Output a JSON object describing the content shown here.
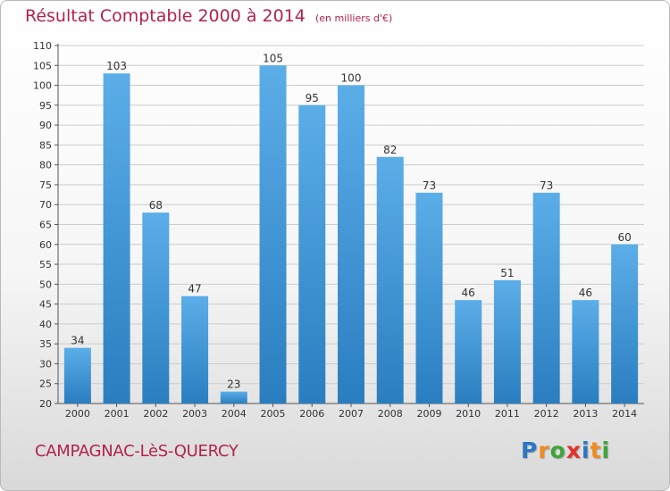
{
  "title": "Résultat Comptable 2000 à 2014",
  "subtitle": "(en milliers d'€)",
  "commune": "CAMPAGNAC-LèS-QUERCY",
  "logo": {
    "letters": [
      {
        "ch": "P",
        "color": "#2a77c4"
      },
      {
        "ch": "r",
        "color": "#f08c1e"
      },
      {
        "ch": "o",
        "color": "#3ea53b"
      },
      {
        "ch": "x",
        "color": "#e2322a"
      },
      {
        "ch": "i",
        "color": "#2a77c4"
      },
      {
        "ch": "t",
        "color": "#f08c1e"
      },
      {
        "ch": "i",
        "color": "#3ea53b"
      }
    ]
  },
  "colors": {
    "title": "#b3224e",
    "bar_top": "#5baee8",
    "bar_bottom": "#2a7ec0",
    "grid": "#cccccc"
  },
  "chart_data": {
    "type": "bar",
    "categories": [
      "2000",
      "2001",
      "2002",
      "2003",
      "2004",
      "2005",
      "2006",
      "2007",
      "2008",
      "2009",
      "2010",
      "2011",
      "2012",
      "2013",
      "2014"
    ],
    "values": [
      34,
      103,
      68,
      47,
      23,
      105,
      95,
      100,
      82,
      73,
      46,
      51,
      73,
      46,
      60
    ],
    "ylim": [
      20,
      110
    ],
    "yticks": [
      20,
      25,
      30,
      35,
      40,
      45,
      50,
      55,
      60,
      65,
      70,
      75,
      80,
      85,
      90,
      95,
      100,
      105,
      110
    ],
    "grid": true,
    "xlabel": "",
    "ylabel": ""
  }
}
